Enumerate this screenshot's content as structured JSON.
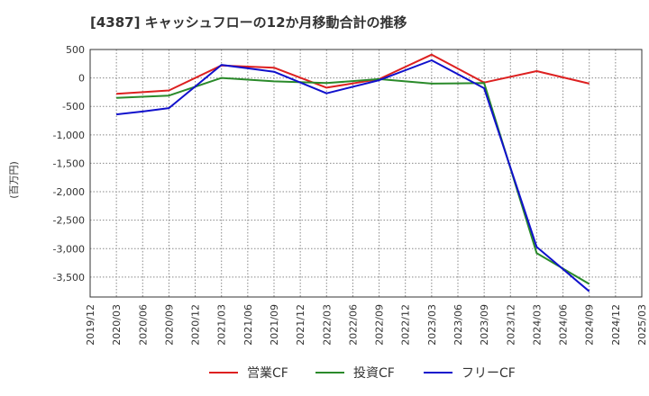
{
  "chart_data": {
    "type": "line",
    "title": "[4387]  キャッシュフローの12か月移動合計の推移",
    "ylabel": "(百万円)",
    "xlabel": "",
    "ylim": [
      -3850,
      500
    ],
    "yticks": [
      500,
      0,
      -500,
      -1000,
      -1500,
      -2000,
      -2500,
      -3000,
      -3500
    ],
    "ytick_labels": [
      "500",
      "0",
      "-500",
      "-1,000",
      "-1,500",
      "-2,000",
      "-2,500",
      "-3,000",
      "-3,500"
    ],
    "categories": [
      "2019/12",
      "2020/03",
      "2020/06",
      "2020/09",
      "2020/12",
      "2021/03",
      "2021/06",
      "2021/09",
      "2021/12",
      "2022/03",
      "2022/06",
      "2022/09",
      "2022/12",
      "2023/03",
      "2023/06",
      "2023/09",
      "2023/12",
      "2024/03",
      "2024/06",
      "2024/09",
      "2024/12",
      "2025/03"
    ],
    "grid": true,
    "legend_position": "bottom",
    "series": [
      {
        "name": "営業CF",
        "color": "#dd2020",
        "values": [
          null,
          -280,
          -250,
          -220,
          null,
          220,
          200,
          180,
          null,
          -170,
          null,
          -20,
          null,
          410,
          null,
          -80,
          null,
          120,
          null,
          -100,
          null,
          null
        ]
      },
      {
        "name": "投資CF",
        "color": "#2a8a2a",
        "values": [
          null,
          -350,
          -330,
          -310,
          null,
          0,
          -30,
          -60,
          null,
          -90,
          null,
          -20,
          null,
          -100,
          null,
          -90,
          null,
          -3080,
          null,
          -3620,
          null,
          null
        ]
      },
      {
        "name": "フリーCF",
        "color": "#1010cc",
        "values": [
          null,
          -640,
          -590,
          -530,
          null,
          230,
          170,
          110,
          null,
          -270,
          null,
          -40,
          null,
          310,
          null,
          -180,
          null,
          -2970,
          null,
          -3750,
          null,
          null
        ]
      }
    ]
  }
}
